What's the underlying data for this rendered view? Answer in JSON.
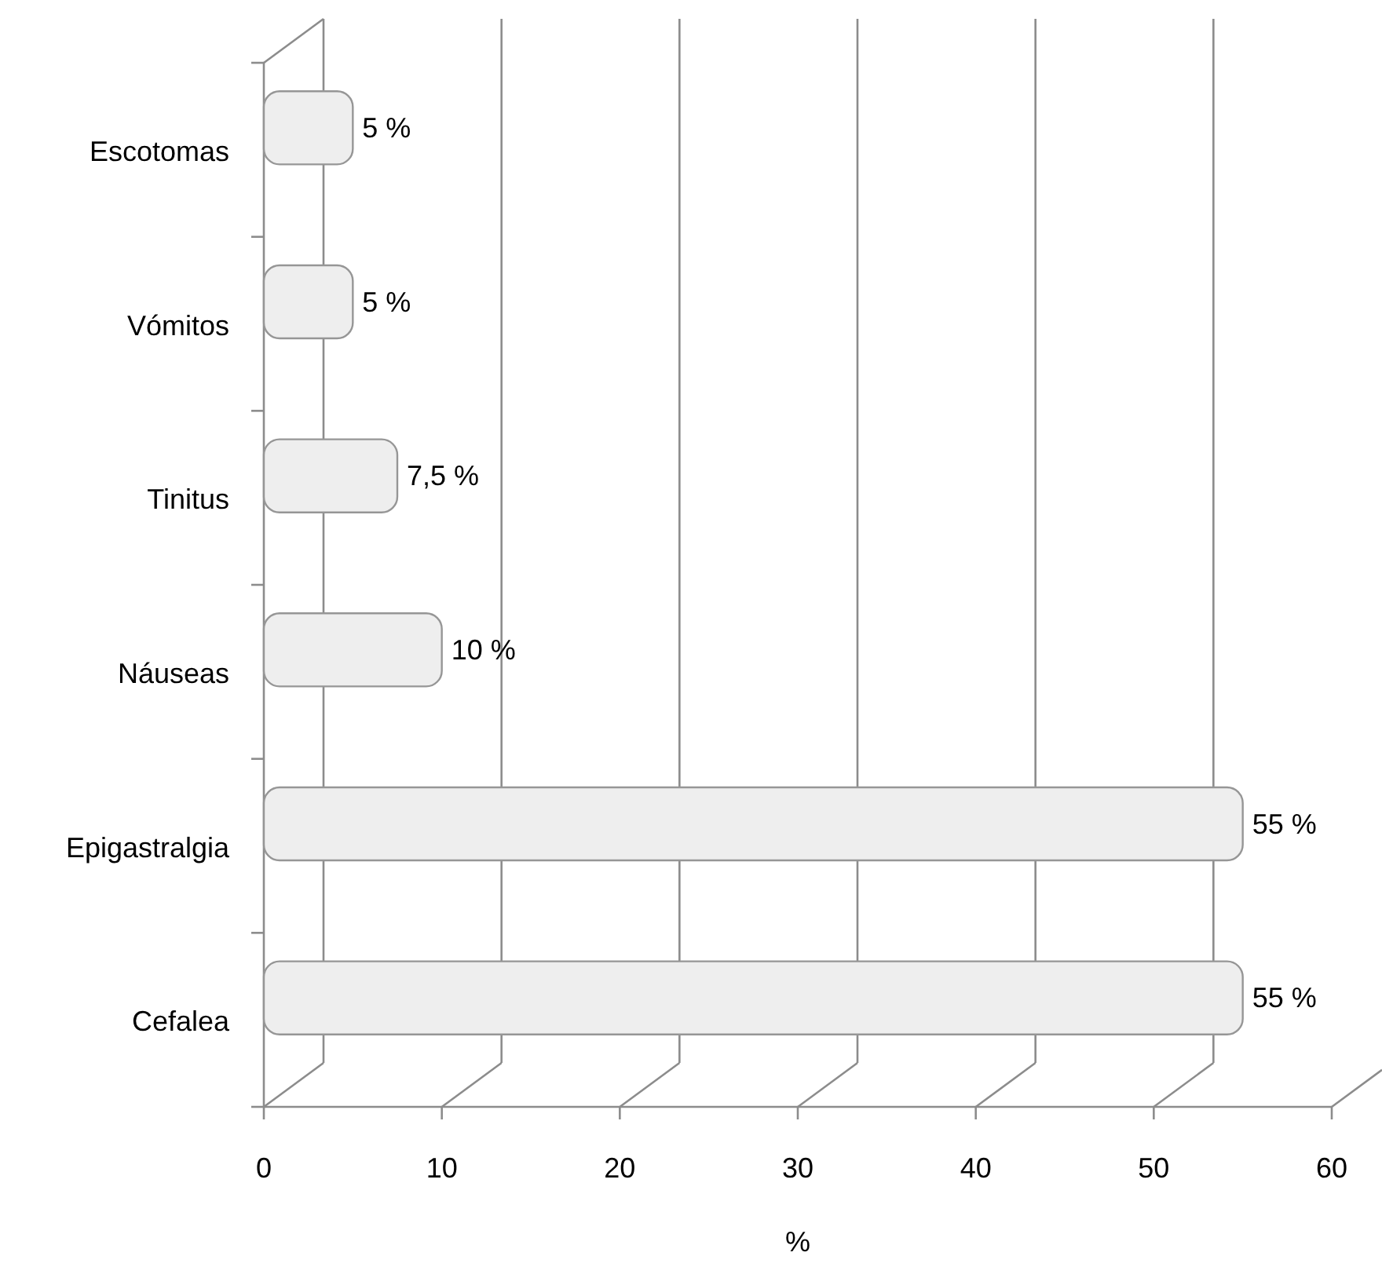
{
  "chart_data": {
    "type": "bar",
    "orientation": "horizontal",
    "categories": [
      "Escotomas",
      "Vómitos",
      "Tinitus",
      "Náuseas",
      "Epigastralgia",
      "Cefalea"
    ],
    "values": [
      5,
      5,
      7.5,
      10,
      55,
      55
    ],
    "value_labels": [
      "5 %",
      "5 %",
      "7,5 %",
      "10 %",
      "55 %",
      "55 %"
    ],
    "color": "#eeeeee",
    "xlabel": "%",
    "xlim": [
      0,
      60
    ],
    "xticks": [
      0,
      10,
      20,
      30,
      40,
      50,
      60
    ],
    "grid": "x"
  }
}
